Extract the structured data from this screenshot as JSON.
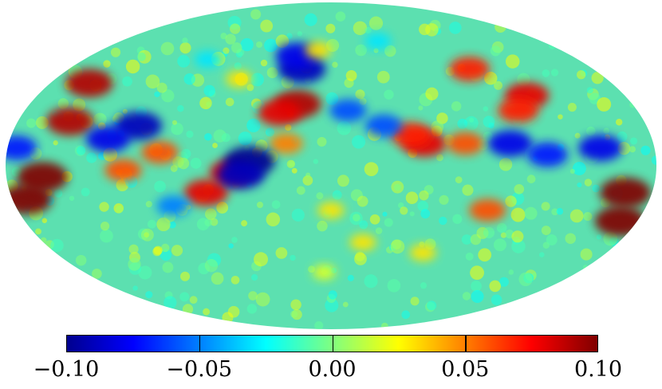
{
  "map": {
    "projection": "mollweide",
    "colormap": "jet",
    "range": [
      -0.1,
      0.1
    ],
    "background_color": "#5ce0b0"
  },
  "colorbar": {
    "colors": [
      "#00008f",
      "#0000ff",
      "#00ffff",
      "#ffff00",
      "#ff0000",
      "#800000"
    ],
    "tick_values": [
      -0.1,
      -0.05,
      0.0,
      0.05,
      0.1
    ],
    "tick_labels": [
      "−0.10",
      "−0.05",
      "0.00",
      "0.05",
      "0.10"
    ]
  },
  "features": [
    {
      "value": 0.1,
      "lon": -170,
      "lat": -25
    },
    {
      "value": 0.1,
      "lon": -165,
      "lat": -12
    },
    {
      "value": 0.1,
      "lon": 172,
      "lat": -15
    },
    {
      "value": 0.1,
      "lon": 160,
      "lat": -5
    },
    {
      "value": 0.09,
      "lon": 150,
      "lat": 20
    },
    {
      "value": 0.09,
      "lon": 155,
      "lat": 38
    },
    {
      "value": 0.09,
      "lon": 20,
      "lat": 28
    },
    {
      "value": 0.08,
      "lon": 30,
      "lat": 24
    },
    {
      "value": 0.08,
      "lon": 55,
      "lat": -3
    },
    {
      "value": 0.08,
      "lon": 70,
      "lat": -12
    },
    {
      "value": 0.08,
      "lon": -52,
      "lat": 10
    },
    {
      "value": 0.07,
      "lon": -45,
      "lat": 14
    },
    {
      "value": 0.08,
      "lon": -120,
      "lat": 32
    },
    {
      "value": 0.07,
      "lon": -110,
      "lat": 25
    },
    {
      "value": 0.07,
      "lon": -95,
      "lat": 45
    },
    {
      "value": 0.06,
      "lon": -75,
      "lat": 10
    },
    {
      "value": 0.06,
      "lon": -90,
      "lat": -20
    },
    {
      "value": 0.06,
      "lon": 95,
      "lat": 6
    },
    {
      "value": 0.06,
      "lon": 115,
      "lat": -2
    },
    {
      "value": 0.05,
      "lon": 25,
      "lat": 10
    },
    {
      "value": -0.1,
      "lon": 45,
      "lat": 2
    },
    {
      "value": -0.09,
      "lon": 50,
      "lat": -4
    },
    {
      "value": -0.09,
      "lon": 20,
      "lat": 45
    },
    {
      "value": -0.08,
      "lon": 25,
      "lat": 52
    },
    {
      "value": -0.09,
      "lon": 110,
      "lat": 18
    },
    {
      "value": -0.08,
      "lon": 125,
      "lat": 12
    },
    {
      "value": -0.07,
      "lon": 175,
      "lat": 8
    },
    {
      "value": -0.08,
      "lon": -100,
      "lat": 10
    },
    {
      "value": -0.07,
      "lon": -120,
      "lat": 5
    },
    {
      "value": -0.08,
      "lon": -150,
      "lat": 8
    },
    {
      "value": -0.06,
      "lon": -30,
      "lat": 18
    },
    {
      "value": -0.06,
      "lon": -10,
      "lat": 25
    },
    {
      "value": -0.05,
      "lon": 90,
      "lat": -18
    },
    {
      "value": 0.03,
      "lon": 0,
      "lat": -20
    },
    {
      "value": 0.03,
      "lon": 10,
      "lat": 55
    },
    {
      "value": 0.03,
      "lon": -20,
      "lat": -35
    },
    {
      "value": 0.03,
      "lon": 60,
      "lat": 40
    },
    {
      "value": 0.03,
      "lon": -60,
      "lat": -40
    },
    {
      "value": -0.03,
      "lon": 90,
      "lat": 50
    },
    {
      "value": -0.03,
      "lon": -40,
      "lat": 60
    },
    {
      "value": 0.02,
      "lon": 5,
      "lat": -50
    }
  ]
}
